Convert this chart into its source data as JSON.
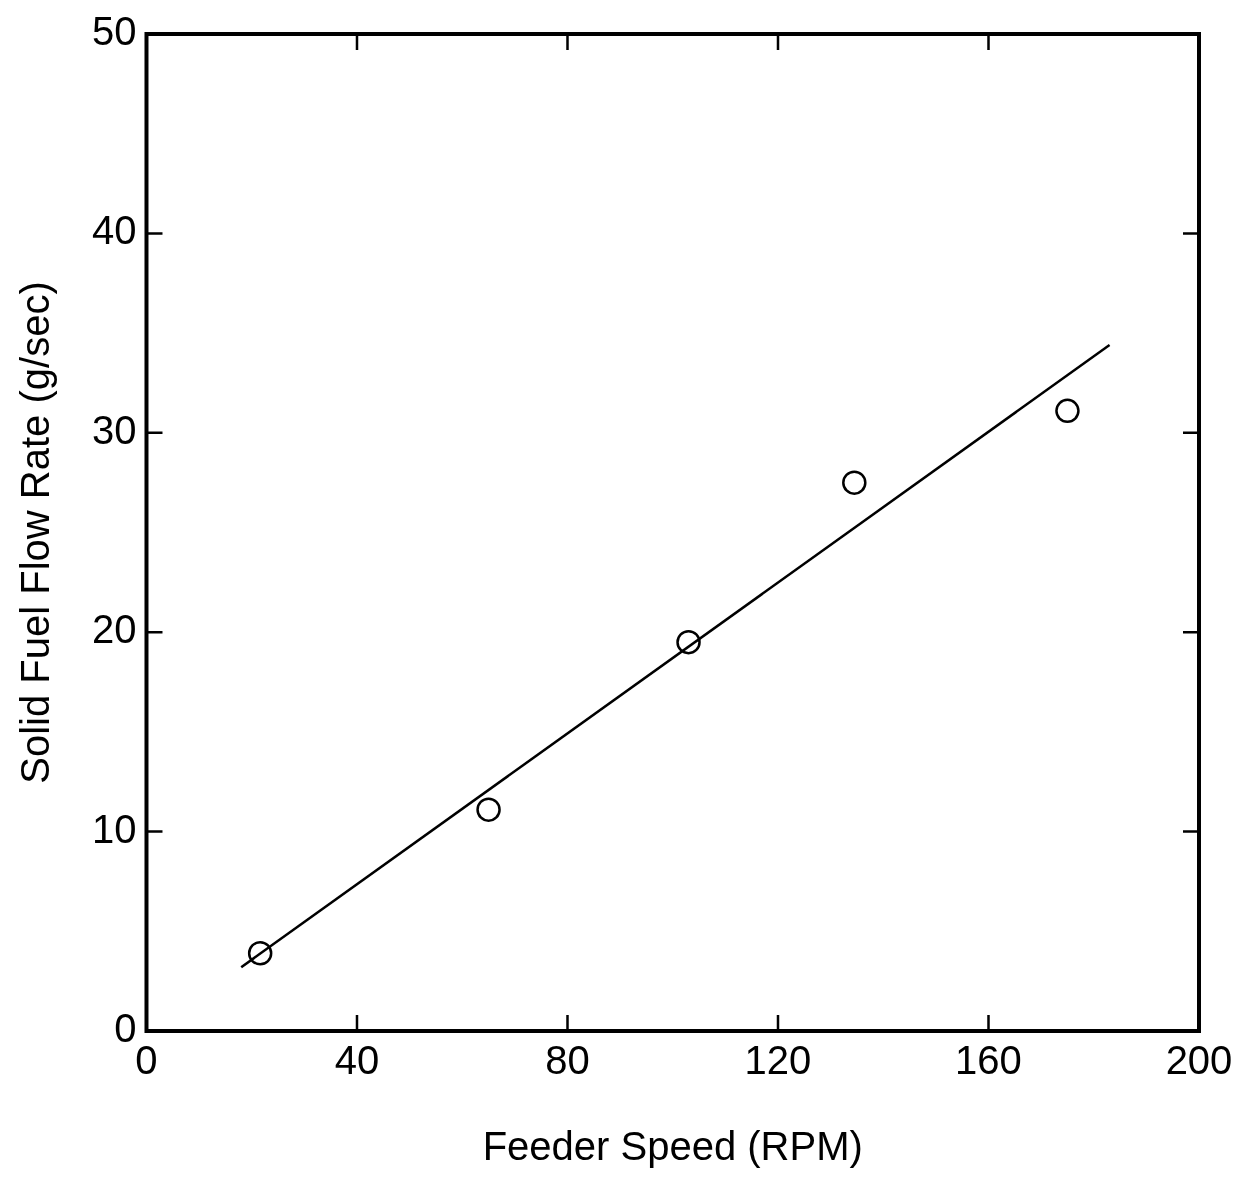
{
  "chart_data": {
    "type": "scatter",
    "xlabel": "Feeder Speed (RPM)",
    "ylabel": "Solid Fuel Flow Rate (g/sec)",
    "xlim": [
      0,
      200
    ],
    "xticks": [
      0,
      40,
      80,
      120,
      160,
      200
    ],
    "ylim": [
      0,
      50
    ],
    "yticks": [
      0,
      10,
      20,
      30,
      40,
      50
    ],
    "grid": false,
    "legend": false,
    "marker": "circle",
    "series": [
      {
        "type": "line",
        "color": "#000000",
        "x": [
          18,
          183
        ],
        "values": [
          3.2,
          34.4
        ],
        "marker": "none",
        "line_style": "solid"
      },
      {
        "type": "scatter",
        "color": "#000000",
        "x": [
          21.6,
          65,
          103,
          134.5,
          175
        ],
        "values": [
          3.9,
          11.1,
          19.5,
          27.5,
          31.1
        ]
      }
    ]
  }
}
